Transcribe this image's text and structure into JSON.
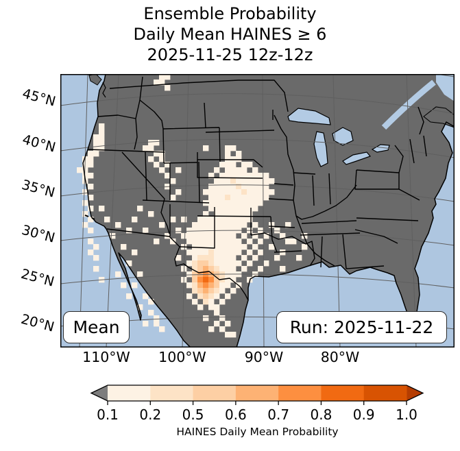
{
  "title": {
    "line1": "Ensemble Probability",
    "line2": "Daily Mean HAINES ≥ 6",
    "line3": "2025-11-25 12z-12z"
  },
  "map": {
    "lat_labels": [
      "45°N",
      "40°N",
      "35°N",
      "30°N",
      "25°N",
      "20°N"
    ],
    "lon_labels": [
      "110°W",
      "100°W",
      "90°W",
      "80°W"
    ],
    "mean_label": "Mean",
    "run_label": "Run: 2025-11-22",
    "colors": {
      "ocean": "#aec6e0",
      "land": "#6a6a6a",
      "lakes": "#b3cbe4",
      "coast_border": "#000000",
      "graticule": "#5f5f5f"
    },
    "cell_levels": [
      "#fdf2e4",
      "#fde3c6",
      "#fdcfa4",
      "#fdb274",
      "#fd8f40",
      "#f16a12"
    ],
    "cells": [
      [
        18,
        0
      ],
      [
        19,
        0
      ],
      [
        17,
        1
      ],
      [
        18,
        1
      ],
      [
        19,
        2
      ],
      [
        7,
        9
      ],
      [
        7,
        10
      ],
      [
        6,
        11
      ],
      [
        7,
        11
      ],
      [
        6,
        12
      ],
      [
        7,
        12
      ],
      [
        6,
        13
      ],
      [
        7,
        13
      ],
      [
        5,
        14
      ],
      [
        6,
        14
      ],
      [
        4,
        15
      ],
      [
        5,
        15
      ],
      [
        4,
        16
      ],
      [
        5,
        16
      ],
      [
        3,
        17
      ],
      [
        4,
        17
      ],
      [
        4,
        18
      ],
      [
        5,
        18
      ],
      [
        4,
        19
      ],
      [
        5,
        20
      ],
      [
        4,
        21
      ],
      [
        5,
        22
      ],
      [
        4,
        23
      ],
      [
        5,
        24
      ],
      [
        4,
        25
      ],
      [
        5,
        26
      ],
      [
        4,
        27
      ],
      [
        5,
        28
      ],
      [
        7,
        24
      ],
      [
        8,
        26
      ],
      [
        5,
        30
      ],
      [
        6,
        31
      ],
      [
        5,
        32
      ],
      [
        6,
        33
      ],
      [
        6,
        35
      ],
      [
        7,
        37
      ],
      [
        16,
        12
      ],
      [
        17,
        12
      ],
      [
        15,
        13
      ],
      [
        16,
        13
      ],
      [
        17,
        14
      ],
      [
        18,
        14
      ],
      [
        16,
        15
      ],
      [
        18,
        15
      ],
      [
        17,
        16
      ],
      [
        19,
        16
      ],
      [
        18,
        17
      ],
      [
        19,
        18
      ],
      [
        20,
        19
      ],
      [
        19,
        20
      ],
      [
        21,
        21
      ],
      [
        20,
        22
      ],
      [
        21,
        17
      ],
      [
        30,
        13
      ],
      [
        31,
        13
      ],
      [
        30,
        14
      ],
      [
        32,
        14
      ],
      [
        26,
        13
      ],
      [
        10,
        27
      ],
      [
        12,
        28
      ],
      [
        13,
        26
      ],
      [
        14,
        24
      ],
      [
        15,
        28
      ],
      [
        16,
        25
      ],
      [
        17,
        30
      ],
      [
        18,
        27
      ],
      [
        19,
        29
      ],
      [
        11,
        31
      ],
      [
        9,
        29
      ],
      [
        30,
        15
      ],
      [
        31,
        15
      ],
      [
        32,
        15
      ],
      [
        29,
        16
      ],
      [
        30,
        16
      ],
      [
        31,
        16
      ],
      [
        33,
        16
      ],
      [
        34,
        16
      ],
      [
        28,
        17
      ],
      [
        30,
        17
      ],
      [
        31,
        17
      ],
      [
        32,
        17
      ],
      [
        33,
        17
      ],
      [
        35,
        17
      ],
      [
        27,
        18
      ],
      [
        29,
        18
      ],
      [
        30,
        18
      ],
      [
        31,
        18
      ],
      [
        32,
        18
      ],
      [
        33,
        18
      ],
      [
        34,
        18
      ],
      [
        35,
        18
      ],
      [
        36,
        18
      ],
      [
        37,
        18
      ],
      [
        28,
        19
      ],
      [
        29,
        19
      ],
      [
        30,
        19
      ],
      [
        31,
        19,
        1
      ],
      [
        32,
        19
      ],
      [
        33,
        19
      ],
      [
        34,
        19
      ],
      [
        35,
        19
      ],
      [
        36,
        19
      ],
      [
        37,
        19
      ],
      [
        38,
        19
      ],
      [
        27,
        20
      ],
      [
        28,
        20
      ],
      [
        29,
        20
      ],
      [
        30,
        20
      ],
      [
        31,
        20
      ],
      [
        32,
        20,
        1
      ],
      [
        33,
        20
      ],
      [
        34,
        20
      ],
      [
        35,
        20
      ],
      [
        36,
        20
      ],
      [
        37,
        20
      ],
      [
        26,
        21
      ],
      [
        27,
        21
      ],
      [
        28,
        21
      ],
      [
        29,
        21
      ],
      [
        30,
        21
      ],
      [
        31,
        21
      ],
      [
        32,
        21
      ],
      [
        33,
        21,
        1
      ],
      [
        34,
        21
      ],
      [
        35,
        21
      ],
      [
        36,
        21
      ],
      [
        37,
        21
      ],
      [
        38,
        21
      ],
      [
        27,
        22
      ],
      [
        28,
        22
      ],
      [
        29,
        22
      ],
      [
        30,
        22,
        1
      ],
      [
        31,
        22
      ],
      [
        32,
        22
      ],
      [
        33,
        22
      ],
      [
        34,
        22
      ],
      [
        35,
        22
      ],
      [
        36,
        22
      ],
      [
        37,
        22
      ],
      [
        26,
        23
      ],
      [
        27,
        23
      ],
      [
        28,
        23
      ],
      [
        29,
        23
      ],
      [
        30,
        23
      ],
      [
        31,
        23
      ],
      [
        32,
        23
      ],
      [
        33,
        23
      ],
      [
        34,
        23
      ],
      [
        35,
        23
      ],
      [
        36,
        23
      ],
      [
        27,
        24
      ],
      [
        28,
        24
      ],
      [
        29,
        24
      ],
      [
        30,
        24
      ],
      [
        31,
        24
      ],
      [
        32,
        24
      ],
      [
        33,
        24
      ],
      [
        34,
        24
      ],
      [
        35,
        24
      ],
      [
        26,
        25
      ],
      [
        28,
        25
      ],
      [
        29,
        25
      ],
      [
        30,
        25
      ],
      [
        31,
        25
      ],
      [
        32,
        25
      ],
      [
        33,
        25
      ],
      [
        34,
        25
      ],
      [
        25,
        26
      ],
      [
        26,
        26
      ],
      [
        27,
        26
      ],
      [
        28,
        26
      ],
      [
        29,
        26
      ],
      [
        30,
        26
      ],
      [
        31,
        26
      ],
      [
        32,
        26
      ],
      [
        33,
        26
      ],
      [
        34,
        26
      ],
      [
        22,
        26
      ],
      [
        20,
        26
      ],
      [
        24,
        27
      ],
      [
        25,
        27
      ],
      [
        26,
        27
      ],
      [
        27,
        27
      ],
      [
        28,
        27
      ],
      [
        29,
        27
      ],
      [
        30,
        27
      ],
      [
        31,
        27
      ],
      [
        32,
        27
      ],
      [
        33,
        27
      ],
      [
        35,
        27
      ],
      [
        38,
        27
      ],
      [
        41,
        27
      ],
      [
        21,
        28
      ],
      [
        23,
        28
      ],
      [
        24,
        28
      ],
      [
        25,
        28
      ],
      [
        26,
        28
      ],
      [
        27,
        28
      ],
      [
        28,
        28
      ],
      [
        29,
        28
      ],
      [
        30,
        28
      ],
      [
        31,
        28
      ],
      [
        32,
        28
      ],
      [
        34,
        28
      ],
      [
        36,
        28
      ],
      [
        39,
        28
      ],
      [
        22,
        29
      ],
      [
        23,
        29
      ],
      [
        24,
        29
      ],
      [
        25,
        29
      ],
      [
        26,
        29
      ],
      [
        27,
        29
      ],
      [
        28,
        29
      ],
      [
        29,
        29
      ],
      [
        30,
        29
      ],
      [
        31,
        29
      ],
      [
        33,
        29
      ],
      [
        35,
        29
      ],
      [
        37,
        29
      ],
      [
        40,
        29
      ],
      [
        44,
        29
      ],
      [
        20,
        30
      ],
      [
        23,
        30
      ],
      [
        24,
        30
      ],
      [
        25,
        30
      ],
      [
        26,
        30
      ],
      [
        27,
        30
      ],
      [
        28,
        30
      ],
      [
        29,
        30
      ],
      [
        30,
        30
      ],
      [
        31,
        30
      ],
      [
        32,
        30
      ],
      [
        34,
        30
      ],
      [
        36,
        30
      ],
      [
        41,
        30
      ],
      [
        42,
        30
      ],
      [
        22,
        31
      ],
      [
        24,
        31
      ],
      [
        25,
        31
      ],
      [
        26,
        31
      ],
      [
        27,
        31
      ],
      [
        28,
        31
      ],
      [
        29,
        31
      ],
      [
        30,
        31
      ],
      [
        31,
        31
      ],
      [
        32,
        31
      ],
      [
        33,
        31
      ],
      [
        35,
        31
      ],
      [
        38,
        31
      ],
      [
        44,
        31
      ],
      [
        23,
        32
      ],
      [
        24,
        32
      ],
      [
        25,
        32
      ],
      [
        26,
        32
      ],
      [
        27,
        32,
        1
      ],
      [
        28,
        32
      ],
      [
        29,
        32
      ],
      [
        30,
        32
      ],
      [
        31,
        32
      ],
      [
        32,
        32
      ],
      [
        34,
        32
      ],
      [
        36,
        32
      ],
      [
        40,
        32
      ],
      [
        21,
        33
      ],
      [
        24,
        33
      ],
      [
        25,
        33,
        1
      ],
      [
        26,
        33,
        1
      ],
      [
        27,
        33,
        1
      ],
      [
        28,
        33
      ],
      [
        29,
        33
      ],
      [
        30,
        33
      ],
      [
        31,
        33
      ],
      [
        33,
        33
      ],
      [
        35,
        33
      ],
      [
        39,
        33
      ],
      [
        43,
        33
      ],
      [
        23,
        34
      ],
      [
        24,
        34,
        1
      ],
      [
        25,
        34,
        2
      ],
      [
        26,
        34,
        2
      ],
      [
        27,
        34,
        1
      ],
      [
        28,
        34
      ],
      [
        29,
        34
      ],
      [
        30,
        34
      ],
      [
        31,
        34
      ],
      [
        32,
        34
      ],
      [
        34,
        34
      ],
      [
        37,
        34
      ],
      [
        22,
        35
      ],
      [
        24,
        35,
        1
      ],
      [
        25,
        35,
        2
      ],
      [
        26,
        35,
        3
      ],
      [
        27,
        35,
        2
      ],
      [
        28,
        35,
        1
      ],
      [
        29,
        35
      ],
      [
        30,
        35
      ],
      [
        31,
        35
      ],
      [
        33,
        35
      ],
      [
        36,
        35
      ],
      [
        40,
        35
      ],
      [
        23,
        36
      ],
      [
        24,
        36,
        2
      ],
      [
        25,
        36,
        3
      ],
      [
        26,
        36,
        4
      ],
      [
        27,
        36,
        3
      ],
      [
        28,
        36,
        2
      ],
      [
        29,
        36,
        1
      ],
      [
        30,
        36
      ],
      [
        31,
        36
      ],
      [
        32,
        36
      ],
      [
        35,
        36
      ],
      [
        22,
        37
      ],
      [
        24,
        37,
        2
      ],
      [
        25,
        37,
        4
      ],
      [
        26,
        37,
        5
      ],
      [
        27,
        37,
        4
      ],
      [
        28,
        37,
        2
      ],
      [
        29,
        37,
        1
      ],
      [
        30,
        37
      ],
      [
        31,
        37
      ],
      [
        34,
        37
      ],
      [
        23,
        38
      ],
      [
        24,
        38,
        1
      ],
      [
        25,
        38,
        3
      ],
      [
        26,
        38,
        4
      ],
      [
        27,
        38,
        3
      ],
      [
        28,
        38,
        2
      ],
      [
        29,
        38
      ],
      [
        30,
        38
      ],
      [
        32,
        38
      ],
      [
        24,
        39,
        1
      ],
      [
        25,
        39,
        2
      ],
      [
        26,
        39,
        3
      ],
      [
        27,
        39,
        2
      ],
      [
        28,
        39,
        1
      ],
      [
        29,
        39
      ],
      [
        31,
        39
      ],
      [
        23,
        40
      ],
      [
        25,
        40,
        1
      ],
      [
        26,
        40,
        2
      ],
      [
        27,
        40,
        1
      ],
      [
        28,
        40
      ],
      [
        30,
        40
      ],
      [
        24,
        41
      ],
      [
        26,
        41,
        1
      ],
      [
        27,
        41
      ],
      [
        29,
        41
      ],
      [
        25,
        42
      ],
      [
        27,
        42
      ],
      [
        28,
        42
      ],
      [
        28,
        43
      ],
      [
        26,
        44
      ],
      [
        29,
        44
      ],
      [
        28,
        45
      ],
      [
        30,
        45
      ],
      [
        27,
        46
      ],
      [
        29,
        46
      ],
      [
        30,
        47
      ],
      [
        31,
        47
      ],
      [
        13,
        32
      ],
      [
        12,
        34
      ],
      [
        14,
        36
      ],
      [
        13,
        38
      ],
      [
        15,
        40
      ],
      [
        14,
        42
      ],
      [
        16,
        43
      ],
      [
        15,
        45
      ],
      [
        17,
        45
      ],
      [
        18,
        46
      ],
      [
        10,
        36
      ],
      [
        11,
        38
      ],
      [
        12,
        40
      ],
      [
        16,
        41
      ],
      [
        17,
        44
      ]
    ]
  },
  "colorbar": {
    "label": "HAINES Daily Mean Probability",
    "ticks": [
      "0.1",
      "0.2",
      "0.5",
      "0.6",
      "0.7",
      "0.8",
      "0.9",
      "1.0"
    ],
    "segment_colors": [
      "#fdf2e4",
      "#fde3c6",
      "#fdcfa4",
      "#fdb274",
      "#fd8f40",
      "#f16a12",
      "#d85302"
    ],
    "under_color": "#7d7d7d",
    "over_color": "#b53d02"
  },
  "chart_data": {
    "type": "heatmap",
    "title": "Ensemble Probability Daily Mean HAINES ≥ 6, 2025-11-25 12z-12z",
    "colorbar_label": "HAINES Daily Mean Probability",
    "probability_levels": [
      0.1,
      0.2,
      0.5,
      0.6,
      0.7,
      0.8,
      0.9,
      1.0
    ],
    "run": "2025-11-22",
    "statistic": "Mean",
    "lat_ticks_deg_n": [
      45,
      40,
      35,
      30,
      25,
      20
    ],
    "lon_ticks_deg_w": [
      110,
      100,
      90,
      80
    ],
    "summary": "Highest probabilities (0.6-0.9) over northeastern Mexico near the Texas Big Bend; broad 0.1-0.5 area over the southern/central Plains, Texas, New Mexico, and scattered cells along the Pacific coast, Great Basin and northern Rockies."
  }
}
